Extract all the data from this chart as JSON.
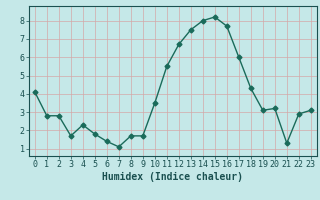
{
  "x": [
    0,
    1,
    2,
    3,
    4,
    5,
    6,
    7,
    8,
    9,
    10,
    11,
    12,
    13,
    14,
    15,
    16,
    17,
    18,
    19,
    20,
    21,
    22,
    23
  ],
  "y": [
    4.1,
    2.8,
    2.8,
    1.7,
    2.3,
    1.8,
    1.4,
    1.1,
    1.7,
    1.7,
    3.5,
    5.5,
    6.7,
    7.5,
    8.0,
    8.2,
    7.7,
    6.0,
    4.3,
    3.1,
    3.2,
    1.3,
    2.9,
    3.1
  ],
  "line_color": "#1a6b5a",
  "marker": "D",
  "marker_size": 2.5,
  "bg_color": "#c5e8e8",
  "grid_color": "#d4a8a8",
  "xlabel": "Humidex (Indice chaleur)",
  "xlabel_fontsize": 7,
  "xlim": [
    -0.5,
    23.5
  ],
  "ylim": [
    0.6,
    8.8
  ],
  "yticks": [
    1,
    2,
    3,
    4,
    5,
    6,
    7,
    8
  ],
  "xticks": [
    0,
    1,
    2,
    3,
    4,
    5,
    6,
    7,
    8,
    9,
    10,
    11,
    12,
    13,
    14,
    15,
    16,
    17,
    18,
    19,
    20,
    21,
    22,
    23
  ],
  "tick_label_fontsize": 6,
  "tick_color": "#1a5050",
  "axis_color": "#1a5050",
  "line_width": 1.0
}
